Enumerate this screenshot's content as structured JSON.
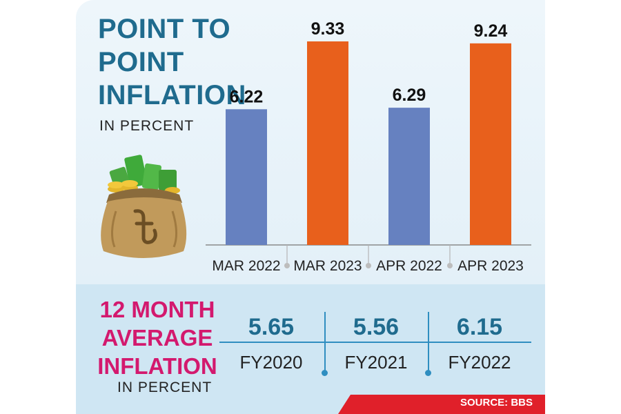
{
  "title_lines": [
    "POINT TO",
    "POINT",
    "INFLATION"
  ],
  "subtitle": "IN PERCENT",
  "chart_data": {
    "type": "bar",
    "categories": [
      "MAR 2022",
      "MAR 2023",
      "APR 2022",
      "APR 2023"
    ],
    "values": [
      6.22,
      9.33,
      6.29,
      9.24
    ],
    "value_labels": [
      "6.22",
      "9.33",
      "6.29",
      "9.24"
    ],
    "bar_colors": [
      "#6681c0",
      "#e8601c",
      "#6681c0",
      "#e8601c"
    ],
    "ylim": [
      0,
      9.33
    ],
    "grid": false
  },
  "average": {
    "title_lines": [
      "12 MONTH",
      "AVERAGE",
      "INFLATION"
    ],
    "subtitle": "IN PERCENT",
    "items": [
      {
        "value": "5.65",
        "label": "FY2020"
      },
      {
        "value": "5.56",
        "label": "FY2021"
      },
      {
        "value": "6.15",
        "label": "FY2022"
      }
    ]
  },
  "source": "SOURCE: BBS",
  "colors": {
    "title": "#1f6b8e",
    "average_title": "#d3196e",
    "bar_2022": "#6681c0",
    "bar_2023": "#e8601c",
    "source_bar": "#e0202a"
  },
  "icons": [
    "money-bag-icon",
    "taka-icon"
  ]
}
